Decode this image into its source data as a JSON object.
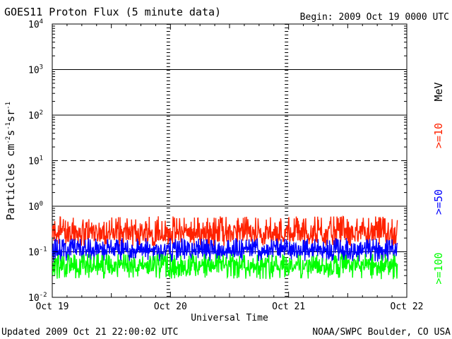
{
  "header": {
    "title": "GOES11 Proton Flux (5 minute data)",
    "begin": "Begin: 2009 Oct 19 0000 UTC"
  },
  "footer": {
    "updated": "Updated 2009 Oct 21 22:00:02 UTC",
    "source": "NOAA/SWPC Boulder, CO USA"
  },
  "colors": {
    "ge10": "#ff2200",
    "ge50": "#0000ff",
    "ge100": "#00ff00",
    "axes": "#000000"
  },
  "chart_data": {
    "type": "line",
    "title": "GOES11 Proton Flux (5 minute data)",
    "xlabel": "Universal Time",
    "ylabel": "Particles cm-2 s-1 sr-1",
    "yscale": "log",
    "ylim": [
      0.01,
      10000
    ],
    "yticks": [
      {
        "base": "10",
        "exp": "4"
      },
      {
        "base": "10",
        "exp": "3"
      },
      {
        "base": "10",
        "exp": "2"
      },
      {
        "base": "10",
        "exp": "1"
      },
      {
        "base": "10",
        "exp": "0"
      },
      {
        "base": "10",
        "exp": "-1"
      },
      {
        "base": "10",
        "exp": "-2"
      }
    ],
    "xticks": [
      "Oct 19",
      "Oct 20",
      "Oct 21",
      "Oct 22"
    ],
    "xlim_days": [
      0,
      3
    ],
    "data_end_day": 2.92,
    "reference_lines": [
      {
        "y": 1000,
        "style": "solid"
      },
      {
        "y": 100,
        "style": "solid"
      },
      {
        "y": 10,
        "style": "dashed"
      },
      {
        "y": 1,
        "style": "solid"
      },
      {
        "y": 0.1,
        "style": "solid"
      }
    ],
    "unit_label": "MeV",
    "series": [
      {
        "name": ">=10",
        "color": "#ff2200",
        "typical": 0.25,
        "range": [
          0.13,
          0.6
        ]
      },
      {
        "name": ">=50",
        "color": "#0000ff",
        "typical": 0.11,
        "range": [
          0.06,
          0.2
        ]
      },
      {
        "name": ">=100",
        "color": "#00ff00",
        "typical": 0.05,
        "range": [
          0.025,
          0.09
        ]
      }
    ]
  }
}
